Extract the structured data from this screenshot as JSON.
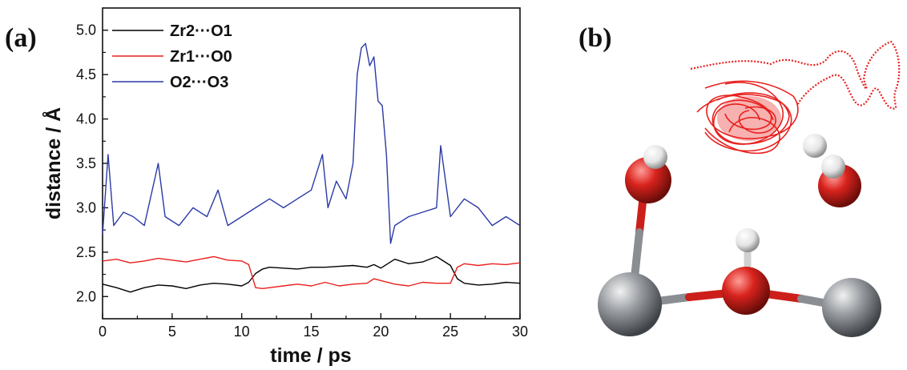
{
  "panel_a": {
    "label": "(a)"
  },
  "panel_b": {
    "label": "(b)"
  },
  "chart_data": {
    "type": "line",
    "xlabel": "time / ps",
    "ylabel": "distance / Å",
    "xlim": [
      0,
      30
    ],
    "ylim": [
      1.75,
      5.25
    ],
    "xticks": [
      "0",
      "5",
      "10",
      "15",
      "20",
      "25",
      "30"
    ],
    "yticks": [
      "2.0",
      "2.5",
      "3.0",
      "3.5",
      "4.0",
      "4.5",
      "5.0"
    ],
    "grid": false,
    "legend_position": "top-left",
    "series": [
      {
        "name": "Zr2···O1",
        "color": "#000000",
        "x": [
          0,
          1,
          2,
          3,
          4,
          5,
          6,
          7,
          8,
          9,
          10,
          10.5,
          11,
          11.5,
          12,
          13,
          14,
          15,
          16,
          17,
          18,
          19,
          19.5,
          20,
          21,
          22,
          23,
          24,
          25,
          25.5,
          26,
          27,
          28,
          29,
          30
        ],
        "values": [
          2.14,
          2.1,
          2.05,
          2.1,
          2.13,
          2.12,
          2.09,
          2.13,
          2.15,
          2.14,
          2.12,
          2.16,
          2.26,
          2.31,
          2.33,
          2.32,
          2.31,
          2.33,
          2.33,
          2.34,
          2.35,
          2.33,
          2.36,
          2.32,
          2.42,
          2.37,
          2.39,
          2.45,
          2.35,
          2.2,
          2.15,
          2.13,
          2.14,
          2.16,
          2.15
        ]
      },
      {
        "name": "Zr1···O0",
        "color": "#e8201e",
        "x": [
          0,
          1,
          2,
          3,
          4,
          5,
          6,
          7,
          8,
          9,
          10,
          10.5,
          11,
          11.5,
          12,
          13,
          14,
          15,
          16,
          17,
          18,
          19,
          19.5,
          20,
          21,
          22,
          23,
          24,
          25,
          25.5,
          26,
          27,
          28,
          29,
          30
        ],
        "values": [
          2.4,
          2.42,
          2.38,
          2.4,
          2.43,
          2.41,
          2.39,
          2.42,
          2.45,
          2.41,
          2.4,
          2.36,
          2.1,
          2.09,
          2.1,
          2.12,
          2.14,
          2.12,
          2.16,
          2.12,
          2.14,
          2.15,
          2.2,
          2.18,
          2.14,
          2.12,
          2.16,
          2.15,
          2.15,
          2.33,
          2.37,
          2.35,
          2.37,
          2.36,
          2.38
        ]
      },
      {
        "name": "O2···O3",
        "color": "#2b3aa5",
        "x": [
          0,
          0.4,
          0.8,
          1.5,
          2.2,
          3,
          4,
          4.5,
          5.5,
          6.5,
          7.5,
          8.3,
          9,
          10,
          11,
          12,
          13,
          14,
          15,
          15.8,
          16.2,
          16.8,
          17.5,
          18,
          18.3,
          18.6,
          18.9,
          19.2,
          19.5,
          19.8,
          20.1,
          20.4,
          20.7,
          21,
          22,
          23,
          24,
          24.3,
          25,
          26,
          27,
          28,
          29,
          30
        ],
        "values": [
          2.7,
          3.6,
          2.8,
          2.95,
          2.9,
          2.8,
          3.5,
          2.9,
          2.8,
          3.0,
          2.9,
          3.2,
          2.8,
          2.9,
          3.0,
          3.1,
          3.0,
          3.1,
          3.2,
          3.6,
          3.0,
          3.3,
          3.1,
          3.5,
          4.5,
          4.8,
          4.85,
          4.6,
          4.7,
          4.2,
          4.15,
          3.6,
          2.6,
          2.8,
          2.9,
          2.95,
          3.0,
          3.7,
          2.9,
          3.1,
          3.0,
          2.8,
          2.9,
          2.8
        ]
      }
    ]
  }
}
